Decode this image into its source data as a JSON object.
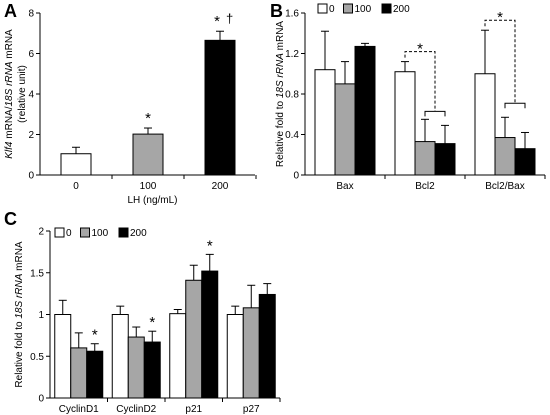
{
  "chart_data": [
    {
      "panel": "A",
      "type": "bar",
      "categories": [
        "0",
        "100",
        "200"
      ],
      "values": [
        1.05,
        2.02,
        6.65
      ],
      "errors": [
        0.32,
        0.3,
        0.45
      ],
      "xlabel": "LH (ng/mL)",
      "ylabel_parts": [
        "Klf4",
        " mRNA/",
        "18S rRNA",
        " mRNA"
      ],
      "ylabel2": "(relative unit)",
      "yticks": [
        "0",
        "2",
        "4",
        "6",
        "8"
      ],
      "ylim": [
        0,
        8
      ],
      "annotations": [
        "*",
        "*",
        "†"
      ],
      "colors": [
        "#ffffff",
        "#a6a6a6",
        "#000000"
      ]
    },
    {
      "panel": "B",
      "type": "bar",
      "categories": [
        "Bax",
        "Bcl2",
        "Bcl2/Bax"
      ],
      "series": [
        {
          "name": "0",
          "values": [
            1.04,
            1.02,
            1.0
          ],
          "errors": [
            0.38,
            0.1,
            0.43
          ],
          "color": "#ffffff"
        },
        {
          "name": "100",
          "values": [
            0.9,
            0.33,
            0.37
          ],
          "errors": [
            0.22,
            0.22,
            0.2
          ],
          "color": "#a6a6a6"
        },
        {
          "name": "200",
          "values": [
            1.27,
            0.31,
            0.26
          ],
          "errors": [
            0.03,
            0.18,
            0.16
          ],
          "color": "#000000"
        }
      ],
      "ylabel_parts": [
        "Relative fold to ",
        "18S rRNA",
        " mRNA"
      ],
      "yticks": [
        "0",
        "0.4",
        "0.8",
        "1.2",
        "1.6"
      ],
      "ylim": [
        0,
        1.6
      ],
      "annotations": [
        "*",
        "*"
      ],
      "legend_position": "top-left"
    },
    {
      "panel": "C",
      "type": "bar",
      "categories": [
        "CyclinD1",
        "CyclinD2",
        "p21",
        "p27"
      ],
      "series": [
        {
          "name": "0",
          "values": [
            1.0,
            1.0,
            1.01,
            1.0
          ],
          "errors": [
            0.17,
            0.1,
            0.05,
            0.1
          ],
          "color": "#ffffff"
        },
        {
          "name": "100",
          "values": [
            0.6,
            0.73,
            1.41,
            1.08
          ],
          "errors": [
            0.18,
            0.12,
            0.18,
            0.27
          ],
          "color": "#a6a6a6"
        },
        {
          "name": "200",
          "values": [
            0.56,
            0.67,
            1.52,
            1.24
          ],
          "errors": [
            0.09,
            0.13,
            0.2,
            0.13
          ],
          "color": "#000000"
        }
      ],
      "ylabel_parts": [
        "Relative fold to ",
        "18S rRNA",
        " mRNA"
      ],
      "yticks": [
        "0",
        "0.5",
        "1",
        "1.5",
        "2"
      ],
      "ylim": [
        0,
        2
      ],
      "annotations": [
        "*",
        "*",
        "*"
      ],
      "legend_position": "top-left"
    }
  ]
}
